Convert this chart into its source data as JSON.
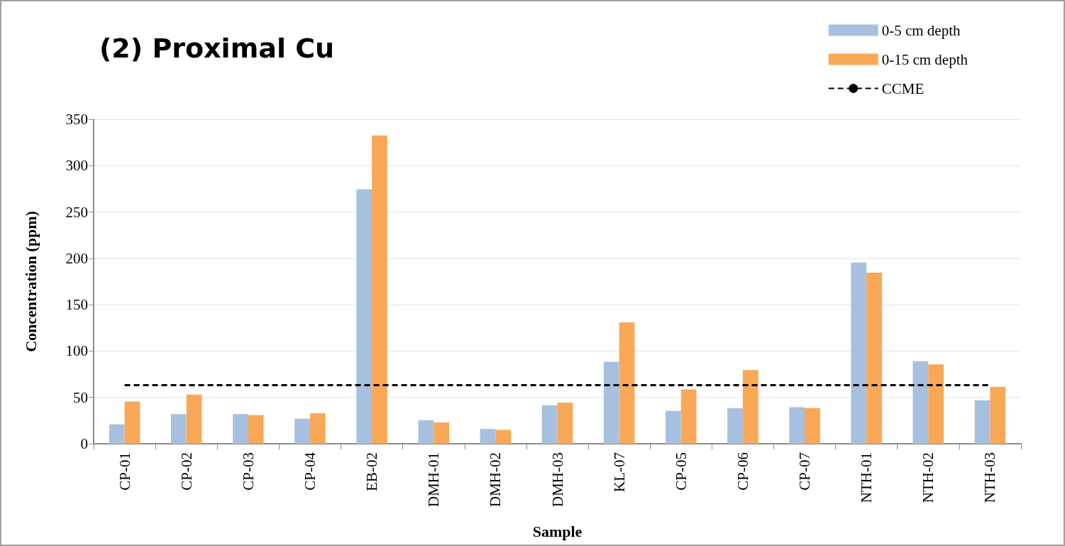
{
  "chart_data": {
    "type": "bar",
    "title": "(2) Proximal Cu",
    "xlabel": "Sample",
    "ylabel": "Concentration (ppm)",
    "categories": [
      "CP-01",
      "CP-02",
      "CP-03",
      "CP-04",
      "EB-02",
      "DMH-01",
      "DMH-02",
      "DMH-03",
      "KL-07",
      "CP-05",
      "CP-06",
      "CP-07",
      "NTH-01",
      "NTH-02",
      "NTH-03"
    ],
    "series": [
      {
        "name": "0-5 cm depth",
        "color": "#a7c0df",
        "values": [
          21,
          32,
          32,
          27,
          274.5,
          25.5,
          16,
          41.5,
          88.5,
          35.5,
          38.5,
          39.5,
          195.5,
          89,
          47
        ]
      },
      {
        "name": "0-15 cm depth",
        "color": "#f9a857",
        "values": [
          45.5,
          53,
          31,
          33,
          332.5,
          23,
          15,
          44.5,
          131,
          58.5,
          79.5,
          38.5,
          184.5,
          85.5,
          61.5
        ]
      }
    ],
    "ref_lines": [
      {
        "axis": "y",
        "value": 63,
        "label": "CCME",
        "color": "#000000",
        "line_style": "dashed"
      }
    ],
    "ylim": [
      0,
      350
    ],
    "yticks": [
      0,
      50,
      100,
      150,
      200,
      250,
      300,
      350
    ],
    "grid": "y",
    "legend": "top right"
  }
}
